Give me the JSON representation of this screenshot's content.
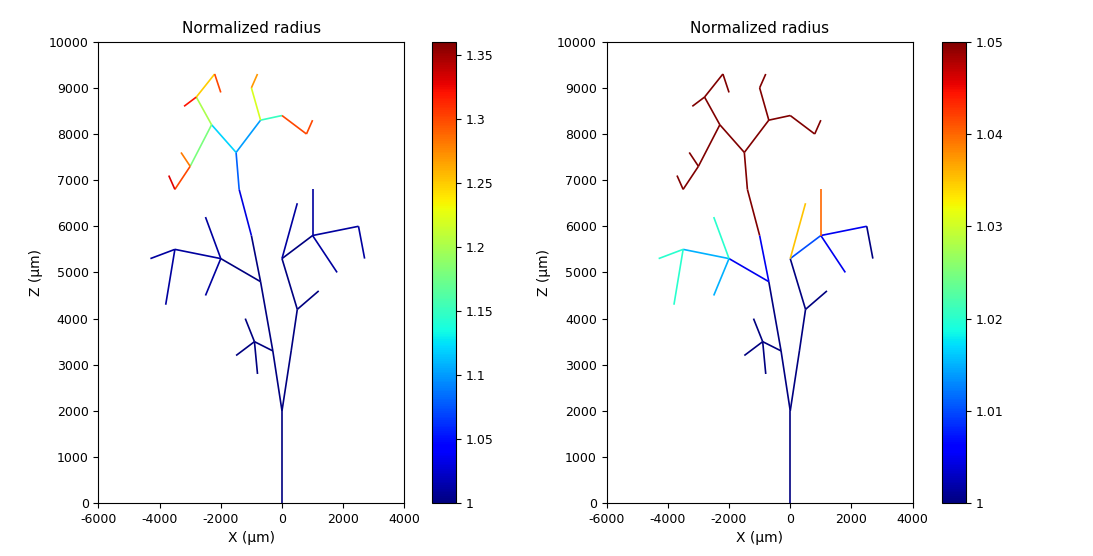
{
  "chart_data": [
    {
      "type": "line",
      "title": "Normalized radius",
      "xlabel": "X (µm)",
      "ylabel": "Z (µm)",
      "xlim": [
        -6000,
        4000
      ],
      "ylim": [
        0,
        10000
      ],
      "xticks": [
        -6000,
        -4000,
        -2000,
        0,
        2000,
        4000
      ],
      "yticks": [
        0,
        1000,
        2000,
        3000,
        4000,
        5000,
        6000,
        7000,
        8000,
        9000,
        10000
      ],
      "colorbar": {
        "range": [
          1,
          1.36
        ],
        "ticks": [
          1,
          1.05,
          1.1,
          1.15,
          1.2,
          1.25,
          1.3,
          1.35
        ]
      },
      "segments": [
        {
          "x": [
            0,
            0
          ],
          "z": [
            0,
            2000
          ],
          "value": 1.0
        },
        {
          "x": [
            0,
            -300
          ],
          "z": [
            2000,
            3300
          ],
          "value": 1.0
        },
        {
          "x": [
            0,
            300
          ],
          "z": [
            2000,
            3300
          ],
          "value": 1.0
        },
        {
          "x": [
            -300,
            -900
          ],
          "z": [
            3300,
            3500
          ],
          "value": 1.0
        },
        {
          "x": [
            -900,
            -1500
          ],
          "z": [
            3500,
            3200
          ],
          "value": 1.0
        },
        {
          "x": [
            -900,
            -800
          ],
          "z": [
            3500,
            2800
          ],
          "value": 1.0
        },
        {
          "x": [
            -900,
            -1200
          ],
          "z": [
            3500,
            4000
          ],
          "value": 1.0
        },
        {
          "x": [
            -300,
            -700
          ],
          "z": [
            3300,
            4800
          ],
          "value": 1.0
        },
        {
          "x": [
            300,
            500
          ],
          "z": [
            3300,
            4200
          ],
          "value": 1.0
        },
        {
          "x": [
            500,
            0
          ],
          "z": [
            4200,
            5300
          ],
          "value": 1.0
        },
        {
          "x": [
            500,
            1200
          ],
          "z": [
            4200,
            4600
          ],
          "value": 1.0
        },
        {
          "x": [
            -700,
            -2000
          ],
          "z": [
            4800,
            5300
          ],
          "value": 1.0
        },
        {
          "x": [
            -2000,
            -3500
          ],
          "z": [
            5300,
            5500
          ],
          "value": 1.01
        },
        {
          "x": [
            -3500,
            -4300
          ],
          "z": [
            5500,
            5300
          ],
          "value": 1.01
        },
        {
          "x": [
            -3500,
            -3800
          ],
          "z": [
            5500,
            4300
          ],
          "value": 1.01
        },
        {
          "x": [
            -2000,
            -2500
          ],
          "z": [
            5300,
            4500
          ],
          "value": 1.01
        },
        {
          "x": [
            -2000,
            -2500
          ],
          "z": [
            5300,
            6200
          ],
          "value": 1.01
        },
        {
          "x": [
            -700,
            -1000
          ],
          "z": [
            4800,
            5800
          ],
          "value": 1.0
        },
        {
          "x": [
            0,
            1000
          ],
          "z": [
            5300,
            5800
          ],
          "value": 1.0
        },
        {
          "x": [
            1000,
            2500
          ],
          "z": [
            5800,
            6000
          ],
          "value": 1.01
        },
        {
          "x": [
            1000,
            1800
          ],
          "z": [
            5800,
            5000
          ],
          "value": 1.01
        },
        {
          "x": [
            0,
            500
          ],
          "z": [
            5300,
            6500
          ],
          "value": 1.01
        },
        {
          "x": [
            1000,
            1000
          ],
          "z": [
            5800,
            6800
          ],
          "value": 1.01
        },
        {
          "x": [
            2500,
            2700
          ],
          "z": [
            6000,
            5300
          ],
          "value": 1.01
        },
        {
          "x": [
            -1000,
            -1400
          ],
          "z": [
            5800,
            6800
          ],
          "value": 1.03
        },
        {
          "x": [
            -1400,
            -1500
          ],
          "z": [
            6800,
            7600
          ],
          "value": 1.08
        },
        {
          "x": [
            -1500,
            -2300
          ],
          "z": [
            7600,
            8200
          ],
          "value": 1.12
        },
        {
          "x": [
            -2300,
            -2800
          ],
          "z": [
            8200,
            8800
          ],
          "value": 1.2
        },
        {
          "x": [
            -2300,
            -3000
          ],
          "z": [
            8200,
            7300
          ],
          "value": 1.18
        },
        {
          "x": [
            -3000,
            -3500
          ],
          "z": [
            7300,
            6800
          ],
          "value": 1.3
        },
        {
          "x": [
            -3000,
            -3300
          ],
          "z": [
            7300,
            7600
          ],
          "value": 1.28
        },
        {
          "x": [
            -2800,
            -3200
          ],
          "z": [
            8800,
            8600
          ],
          "value": 1.32
        },
        {
          "x": [
            -2800,
            -2200
          ],
          "z": [
            8800,
            9300
          ],
          "value": 1.25
        },
        {
          "x": [
            -1500,
            -700
          ],
          "z": [
            7600,
            8300
          ],
          "value": 1.1
        },
        {
          "x": [
            -700,
            0
          ],
          "z": [
            8300,
            8400
          ],
          "value": 1.15
        },
        {
          "x": [
            0,
            800
          ],
          "z": [
            8400,
            8000
          ],
          "value": 1.3
        },
        {
          "x": [
            -700,
            -1000
          ],
          "z": [
            8300,
            9000
          ],
          "value": 1.22
        },
        {
          "x": [
            -3500,
            -3700
          ],
          "z": [
            6800,
            7100
          ],
          "value": 1.33
        },
        {
          "x": [
            800,
            1000
          ],
          "z": [
            8000,
            8300
          ],
          "value": 1.3
        },
        {
          "x": [
            -1000,
            -800
          ],
          "z": [
            9000,
            9300
          ],
          "value": 1.27
        },
        {
          "x": [
            -2200,
            -2000
          ],
          "z": [
            9300,
            8900
          ],
          "value": 1.3
        }
      ]
    },
    {
      "type": "line",
      "title": "Normalized radius",
      "xlabel": "X (µm)",
      "ylabel": "Z (µm)",
      "xlim": [
        -6000,
        4000
      ],
      "ylim": [
        0,
        10000
      ],
      "xticks": [
        -6000,
        -4000,
        -2000,
        0,
        2000,
        4000
      ],
      "yticks": [
        0,
        1000,
        2000,
        3000,
        4000,
        5000,
        6000,
        7000,
        8000,
        9000,
        10000
      ],
      "colorbar": {
        "range": [
          1,
          1.05
        ],
        "ticks": [
          1,
          1.01,
          1.02,
          1.03,
          1.04,
          1.05
        ]
      },
      "segments": [
        {
          "x": [
            0,
            0
          ],
          "z": [
            0,
            2000
          ],
          "value": 1.0
        },
        {
          "x": [
            0,
            -300
          ],
          "z": [
            2000,
            3300
          ],
          "value": 1.0
        },
        {
          "x": [
            0,
            300
          ],
          "z": [
            2000,
            3300
          ],
          "value": 1.0
        },
        {
          "x": [
            -300,
            -900
          ],
          "z": [
            3300,
            3500
          ],
          "value": 1.0
        },
        {
          "x": [
            -900,
            -1500
          ],
          "z": [
            3500,
            3200
          ],
          "value": 1.0
        },
        {
          "x": [
            -900,
            -800
          ],
          "z": [
            3500,
            2800
          ],
          "value": 1.0
        },
        {
          "x": [
            -900,
            -1200
          ],
          "z": [
            3500,
            4000
          ],
          "value": 1.0
        },
        {
          "x": [
            -300,
            -700
          ],
          "z": [
            3300,
            4800
          ],
          "value": 1.0
        },
        {
          "x": [
            300,
            500
          ],
          "z": [
            3300,
            4200
          ],
          "value": 1.0
        },
        {
          "x": [
            500,
            0
          ],
          "z": [
            4200,
            5300
          ],
          "value": 1.0
        },
        {
          "x": [
            500,
            1200
          ],
          "z": [
            4200,
            4600
          ],
          "value": 1.0
        },
        {
          "x": [
            -700,
            -2000
          ],
          "z": [
            4800,
            5300
          ],
          "value": 1.005
        },
        {
          "x": [
            -2000,
            -3500
          ],
          "z": [
            5300,
            5500
          ],
          "value": 1.015
        },
        {
          "x": [
            -3500,
            -4300
          ],
          "z": [
            5500,
            5300
          ],
          "value": 1.02
        },
        {
          "x": [
            -3500,
            -3800
          ],
          "z": [
            5500,
            4300
          ],
          "value": 1.02
        },
        {
          "x": [
            -2000,
            -2500
          ],
          "z": [
            5300,
            4500
          ],
          "value": 1.015
        },
        {
          "x": [
            -2000,
            -2500
          ],
          "z": [
            5300,
            6200
          ],
          "value": 1.02
        },
        {
          "x": [
            -700,
            -1000
          ],
          "z": [
            4800,
            5800
          ],
          "value": 1.005
        },
        {
          "x": [
            0,
            1000
          ],
          "z": [
            5300,
            5800
          ],
          "value": 1.01
        },
        {
          "x": [
            1000,
            2500
          ],
          "z": [
            5800,
            6000
          ],
          "value": 1.005
        },
        {
          "x": [
            1000,
            1800
          ],
          "z": [
            5800,
            5000
          ],
          "value": 1.005
        },
        {
          "x": [
            0,
            500
          ],
          "z": [
            5300,
            6500
          ],
          "value": 1.035
        },
        {
          "x": [
            1000,
            1000
          ],
          "z": [
            5800,
            6800
          ],
          "value": 1.04
        },
        {
          "x": [
            2500,
            2700
          ],
          "z": [
            6000,
            5300
          ],
          "value": 1.0
        },
        {
          "x": [
            -1000,
            -1400
          ],
          "z": [
            5800,
            6800
          ],
          "value": 1.05
        },
        {
          "x": [
            -1400,
            -1500
          ],
          "z": [
            6800,
            7600
          ],
          "value": 1.05
        },
        {
          "x": [
            -1500,
            -2300
          ],
          "z": [
            7600,
            8200
          ],
          "value": 1.05
        },
        {
          "x": [
            -2300,
            -2800
          ],
          "z": [
            8200,
            8800
          ],
          "value": 1.05
        },
        {
          "x": [
            -2300,
            -3000
          ],
          "z": [
            8200,
            7300
          ],
          "value": 1.05
        },
        {
          "x": [
            -3000,
            -3500
          ],
          "z": [
            7300,
            6800
          ],
          "value": 1.05
        },
        {
          "x": [
            -3000,
            -3300
          ],
          "z": [
            7300,
            7600
          ],
          "value": 1.05
        },
        {
          "x": [
            -2800,
            -3200
          ],
          "z": [
            8800,
            8600
          ],
          "value": 1.05
        },
        {
          "x": [
            -2800,
            -2200
          ],
          "z": [
            8800,
            9300
          ],
          "value": 1.05
        },
        {
          "x": [
            -1500,
            -700
          ],
          "z": [
            7600,
            8300
          ],
          "value": 1.05
        },
        {
          "x": [
            -700,
            0
          ],
          "z": [
            8300,
            8400
          ],
          "value": 1.05
        },
        {
          "x": [
            0,
            800
          ],
          "z": [
            8400,
            8000
          ],
          "value": 1.05
        },
        {
          "x": [
            -700,
            -1000
          ],
          "z": [
            8300,
            9000
          ],
          "value": 1.05
        },
        {
          "x": [
            -3500,
            -3700
          ],
          "z": [
            6800,
            7100
          ],
          "value": 1.05
        },
        {
          "x": [
            800,
            1000
          ],
          "z": [
            8000,
            8300
          ],
          "value": 1.05
        },
        {
          "x": [
            -1000,
            -800
          ],
          "z": [
            9000,
            9300
          ],
          "value": 1.05
        },
        {
          "x": [
            -2200,
            -2000
          ],
          "z": [
            9300,
            8900
          ],
          "value": 1.05
        }
      ]
    }
  ]
}
